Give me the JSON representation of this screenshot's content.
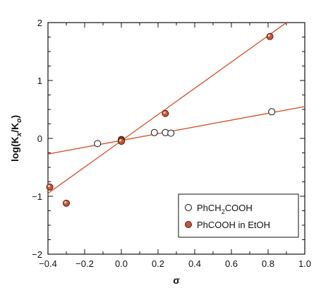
{
  "chart_data": {
    "type": "scatter",
    "xlabel": "σ",
    "ylabel": "log(K",
    "ylabel_sub1": "x",
    "ylabel_mid": "/K",
    "ylabel_sub2": "o",
    "ylabel_end": ")",
    "xlim": [
      -0.4,
      1.0
    ],
    "ylim": [
      -2,
      2
    ],
    "x_ticks": [
      -0.4,
      -0.2,
      0.0,
      0.2,
      0.4,
      0.6,
      0.8,
      1.0
    ],
    "x_tick_labels": [
      "−0.4",
      "−0.2",
      "0.0",
      "0.2",
      "0.4",
      "0.6",
      "0.8",
      "1.0"
    ],
    "y_ticks": [
      -2,
      -1,
      0,
      1,
      2
    ],
    "y_tick_labels": [
      "−2",
      "−1",
      "0",
      "1",
      "2"
    ],
    "grid": false,
    "legend_position": "bottom-right",
    "line_color": "#d4572f",
    "series": [
      {
        "name_parts": [
          "PhCH",
          "2",
          "COOH"
        ],
        "marker": "open-circle",
        "marker_color": "#ffffff",
        "x": [
          -0.13,
          0.0,
          0.0,
          0.18,
          0.24,
          0.27,
          0.82
        ],
        "y": [
          -0.09,
          -0.02,
          -0.05,
          0.1,
          0.1,
          0.09,
          0.46
        ],
        "fit": {
          "x": [
            -0.4,
            1.0
          ],
          "y": [
            -0.27,
            0.55
          ]
        }
      },
      {
        "name_parts": [
          "PhCOOH in EtOH"
        ],
        "marker": "filled-circle",
        "marker_color": "#c8553a",
        "x": [
          -0.39,
          -0.3,
          0.0,
          0.0,
          0.24,
          0.81
        ],
        "y": [
          -0.84,
          -1.12,
          -0.03,
          -0.05,
          0.43,
          1.76
        ],
        "fit": {
          "x": [
            -0.4,
            0.9
          ],
          "y": [
            -0.95,
            2.0
          ]
        }
      }
    ]
  }
}
